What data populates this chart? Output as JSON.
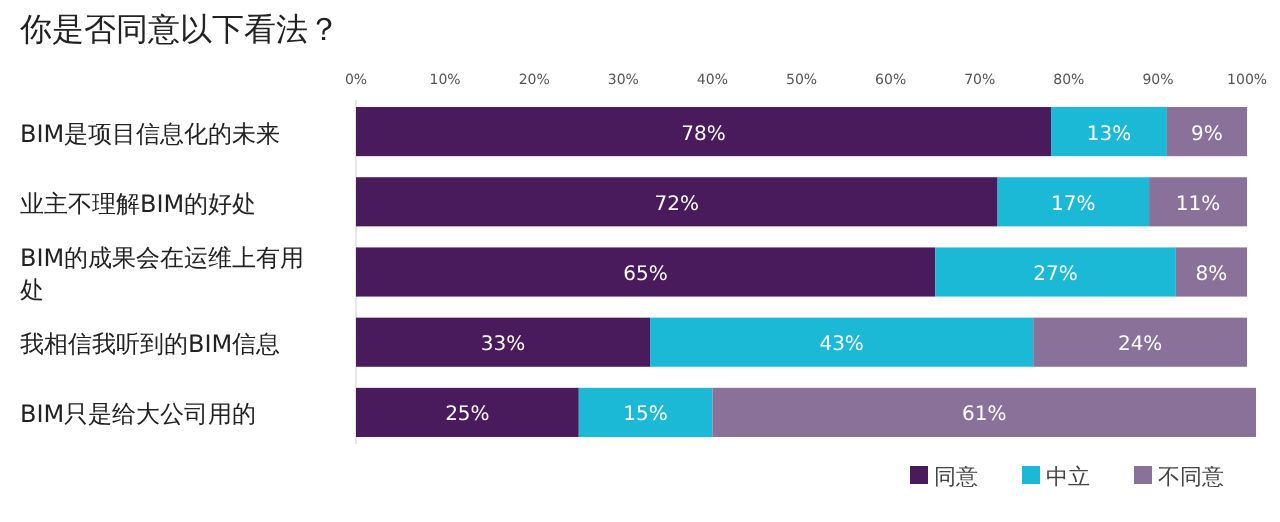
{
  "chart_data": {
    "type": "bar",
    "orientation": "horizontal",
    "stacked": true,
    "title": "你是否同意以下看法？",
    "categories": [
      "BIM是项目信息化的未来",
      "业主不理解BIM的好处",
      "BIM的成果会在运维上有用处",
      "我相信我听到的BIM信息",
      "BIM只是给大公司用的"
    ],
    "series": [
      {
        "name": "同意",
        "color": "#4a1b5c",
        "values": [
          78,
          72,
          65,
          33,
          25
        ],
        "value_labels": [
          "78%",
          "72%",
          "65%",
          "33%",
          "25%"
        ]
      },
      {
        "name": "中立",
        "color": "#1bb9d5",
        "values": [
          13,
          17,
          27,
          43,
          15
        ],
        "value_labels": [
          "13%",
          "17%",
          "27%",
          "43%",
          "15%"
        ]
      },
      {
        "name": "不同意",
        "color": "#8a7199",
        "values": [
          9,
          11,
          8,
          24,
          61
        ],
        "value_labels": [
          "9%",
          "11%",
          "8%",
          "24%",
          "61%"
        ]
      }
    ],
    "xlim": [
      0,
      101
    ],
    "xticks": [
      {
        "value": 0,
        "label": "0%"
      },
      {
        "value": 10,
        "label": "10%"
      },
      {
        "value": 20,
        "label": "20%"
      },
      {
        "value": 30,
        "label": "30%"
      },
      {
        "value": 40,
        "label": "40%"
      },
      {
        "value": 50,
        "label": "50%"
      },
      {
        "value": 60,
        "label": "60%"
      },
      {
        "value": 70,
        "label": "70%"
      },
      {
        "value": 80,
        "label": "80%"
      },
      {
        "value": 90,
        "label": "90%"
      },
      {
        "value": 100,
        "label": "100%"
      }
    ],
    "grid": false,
    "legend": "bottom right"
  }
}
